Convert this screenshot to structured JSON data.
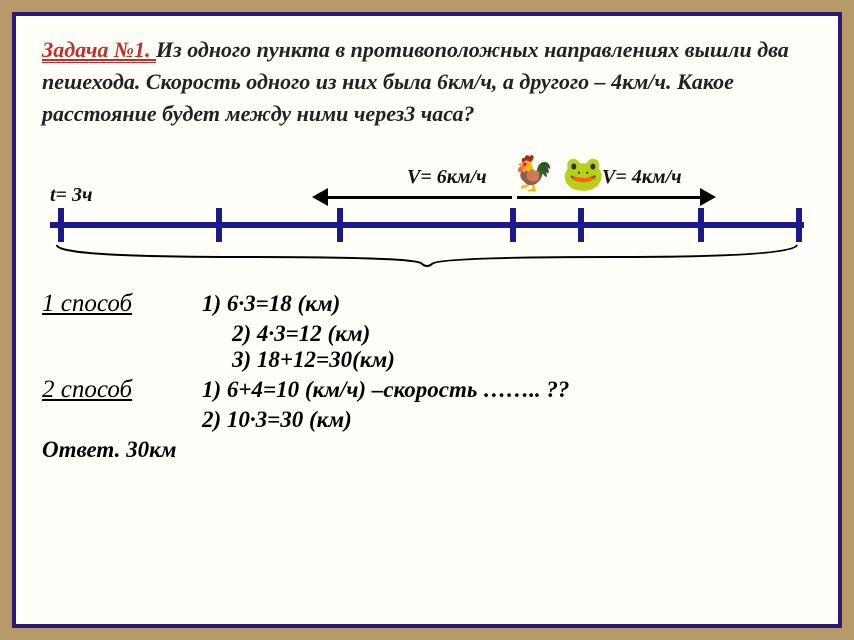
{
  "problem": {
    "title": "Задача №1. ",
    "text": "Из одного пункта в противоположных направлениях вышли два пешехода. Скорость одного из них была 6км/ч, а другого – 4км/ч. Какое расстояние будет между ними через3 часа?"
  },
  "diagram": {
    "time_label": "t= 3ч",
    "v1_label": "V= 6км/ч",
    "v2_label": "V= 4км/ч",
    "tick_positions_pct": [
      1,
      22,
      38,
      61,
      70,
      86,
      99
    ],
    "line_color": "#1a1a8a",
    "arrow_color": "#000000"
  },
  "solution": {
    "method1_label": "1 способ",
    "method2_label": "2 способ ",
    "m1_step1": "1) 6·3=18 (км)",
    "m1_step2": "2) 4·3=12 (км)",
    "m1_step3": "3) 18+12=30(км)",
    "m2_step1": "1) 6+4=10 (км/ч) –скорость …….. ??",
    "m2_step2": "2) 10·3=30 (км)",
    "answer": "Ответ. 30км"
  },
  "colors": {
    "frame_bg": "#fffef8",
    "frame_border": "#2a1a7a",
    "page_bg": "#b89968",
    "title_color": "#c03028",
    "text_color": "#222222"
  }
}
